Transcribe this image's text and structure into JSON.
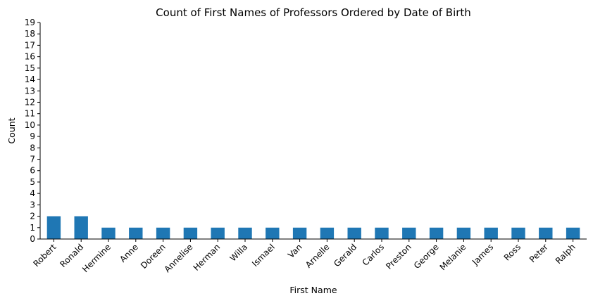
{
  "chart_data": {
    "type": "bar",
    "title": "Count of First Names of Professors Ordered by Date of Birth",
    "xlabel": "First Name",
    "ylabel": "Count",
    "categories": [
      "Robert",
      "Ronald",
      "Hermine",
      "Anne",
      "Doreen",
      "Annelise",
      "Herman",
      "Willa",
      "Ismael",
      "Van",
      "Arnelle",
      "Gerald",
      "Carlos",
      "Preston",
      "George",
      "Melanie",
      "James",
      "Ross",
      "Peter",
      "Ralph"
    ],
    "values": [
      2,
      2,
      1,
      1,
      1,
      1,
      1,
      1,
      1,
      1,
      1,
      1,
      1,
      1,
      1,
      1,
      1,
      1,
      1,
      1
    ],
    "ylim": [
      0,
      19
    ],
    "yticks": [
      0,
      1,
      2,
      3,
      4,
      5,
      6,
      7,
      8,
      9,
      10,
      11,
      12,
      13,
      14,
      15,
      16,
      17,
      18,
      19
    ],
    "grid": false,
    "bar_color": "#1f77b4"
  }
}
